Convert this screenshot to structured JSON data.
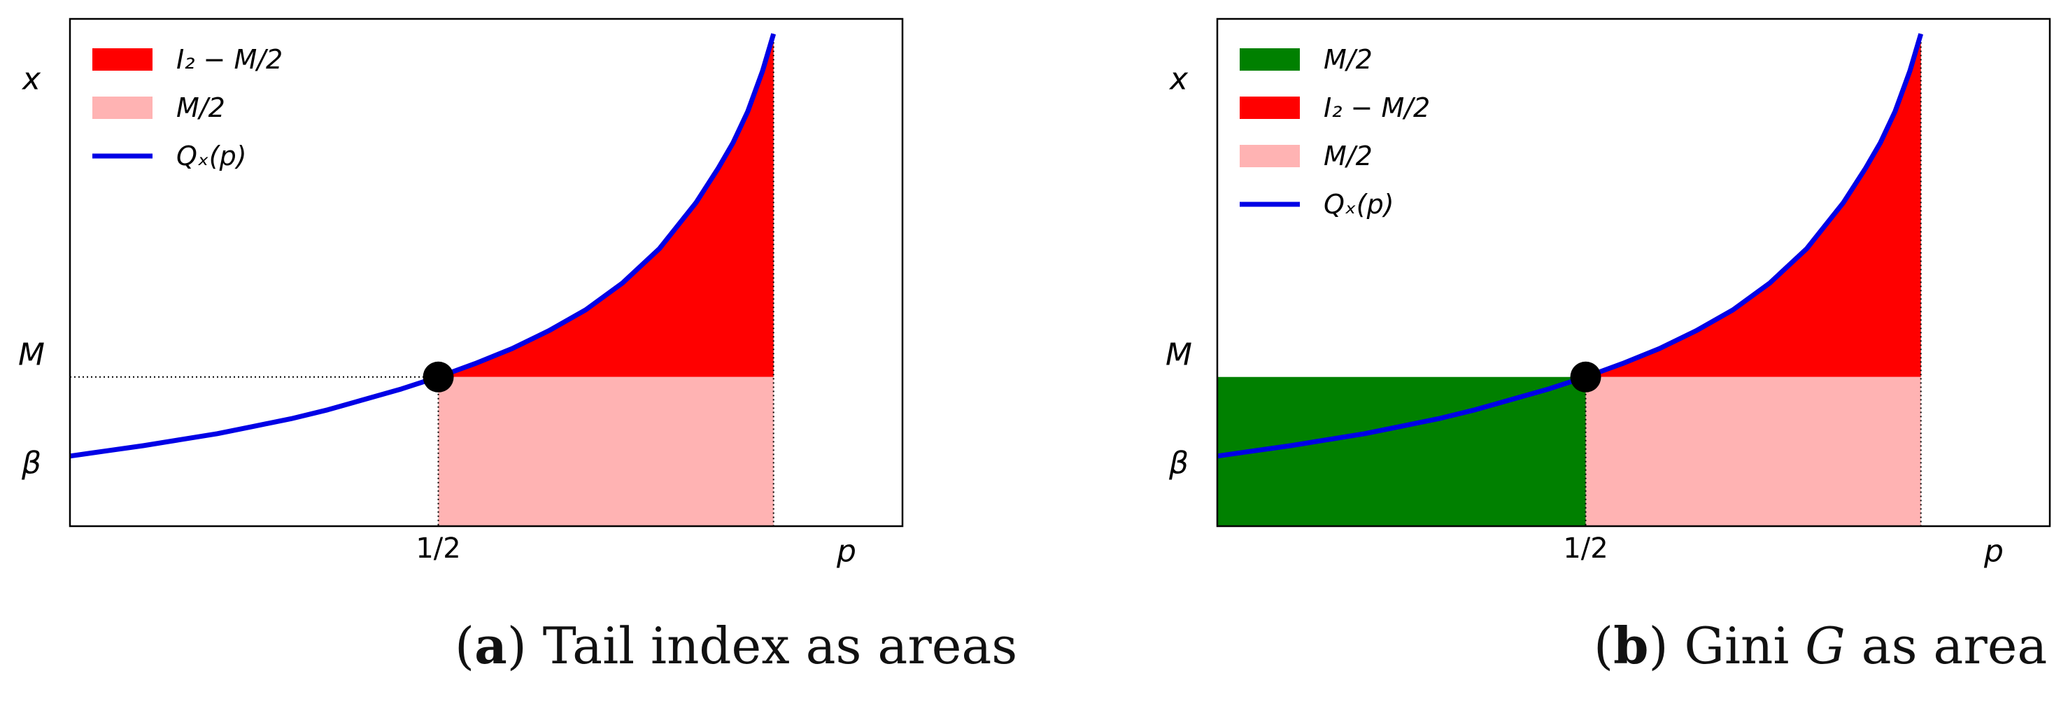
{
  "chart_data": [
    {
      "id": "a",
      "type": "area",
      "xlim": [
        0,
        1.13
      ],
      "ylim": [
        0,
        3.4
      ],
      "axis_labels": {
        "x": "p",
        "y": "x"
      },
      "y_marks": [
        {
          "label": "M",
          "value": 1.0
        },
        {
          "label": "β",
          "value": 0.47
        }
      ],
      "x_marks": [
        {
          "label": "1/2",
          "value": 0.5
        }
      ],
      "curve": {
        "name": "Q_x(p)",
        "color": "#0000e6",
        "p": [
          0.0,
          0.05,
          0.1,
          0.15,
          0.2,
          0.25,
          0.3,
          0.35,
          0.4,
          0.45,
          0.5,
          0.55,
          0.6,
          0.65,
          0.7,
          0.75,
          0.8,
          0.85,
          0.88,
          0.9,
          0.92,
          0.94,
          0.955
        ],
        "x": [
          0.47,
          0.505,
          0.54,
          0.58,
          0.62,
          0.67,
          0.72,
          0.78,
          0.85,
          0.92,
          1.0,
          1.09,
          1.19,
          1.31,
          1.45,
          1.63,
          1.86,
          2.17,
          2.4,
          2.57,
          2.78,
          3.05,
          3.3
        ]
      },
      "areas": [
        {
          "name": "I_2 − M/2",
          "color": "#ff0000",
          "from_p": 0.5,
          "to_p": 0.955,
          "lower": "M",
          "upper": "curve"
        },
        {
          "name": "M/2",
          "color": "#ffb3b3",
          "from_p": 0.5,
          "to_p": 0.955,
          "lower": 0,
          "upper": "M"
        }
      ],
      "median_point": {
        "p": 0.5,
        "x": 1.0,
        "color": "#000000"
      },
      "guides": [
        "horizontal dotted line at M from p = 0 to 1/2",
        "vertical dotted lines at p = 1/2 and p = 0.955"
      ],
      "legend": {
        "placement": "top-left",
        "entries": [
          {
            "label": "I₂ − M/2",
            "kind": "patch",
            "color": "#ff0000"
          },
          {
            "label": "M/2",
            "kind": "patch",
            "color": "#ffb3b3"
          },
          {
            "label": "Qₓ(p)",
            "kind": "line",
            "color": "#0000e6"
          }
        ]
      }
    },
    {
      "id": "b",
      "type": "area",
      "xlim": [
        0,
        1.13
      ],
      "ylim": [
        0,
        3.4
      ],
      "axis_labels": {
        "x": "p",
        "y": "x"
      },
      "y_marks": [
        {
          "label": "M",
          "value": 1.0
        },
        {
          "label": "β",
          "value": 0.47
        }
      ],
      "x_marks": [
        {
          "label": "1/2",
          "value": 0.5
        }
      ],
      "curve": {
        "name": "Q_x(p)",
        "color": "#0000e6",
        "p": [
          0.0,
          0.05,
          0.1,
          0.15,
          0.2,
          0.25,
          0.3,
          0.35,
          0.4,
          0.45,
          0.5,
          0.55,
          0.6,
          0.65,
          0.7,
          0.75,
          0.8,
          0.85,
          0.88,
          0.9,
          0.92,
          0.94,
          0.955
        ],
        "x": [
          0.47,
          0.505,
          0.54,
          0.58,
          0.62,
          0.67,
          0.72,
          0.78,
          0.85,
          0.92,
          1.0,
          1.09,
          1.19,
          1.31,
          1.45,
          1.63,
          1.86,
          2.17,
          2.4,
          2.57,
          2.78,
          3.05,
          3.3
        ]
      },
      "areas": [
        {
          "name": "M/2",
          "color": "#008000",
          "from_p": 0.0,
          "to_p": 0.5,
          "lower": 0,
          "upper": "M"
        },
        {
          "name": "I_2 − M/2",
          "color": "#ff0000",
          "from_p": 0.5,
          "to_p": 0.955,
          "lower": "M",
          "upper": "curve"
        },
        {
          "name": "M/2",
          "color": "#ffb3b3",
          "from_p": 0.5,
          "to_p": 0.955,
          "lower": 0,
          "upper": "M"
        }
      ],
      "median_point": {
        "p": 0.5,
        "x": 1.0,
        "color": "#000000"
      },
      "guides": [
        "vertical dotted lines at p = 1/2 and p = 0.955"
      ],
      "legend": {
        "placement": "top-left",
        "entries": [
          {
            "label": "M/2",
            "kind": "patch",
            "color": "#008000"
          },
          {
            "label": "I₂ − M/2",
            "kind": "patch",
            "color": "#ff0000"
          },
          {
            "label": "M/2",
            "kind": "patch",
            "color": "#ffb3b3"
          },
          {
            "label": "Qₓ(p)",
            "kind": "line",
            "color": "#0000e6"
          }
        ]
      }
    }
  ],
  "captions": [
    {
      "letter": "a",
      "text": "Tail index as areas"
    },
    {
      "letter": "b",
      "text": "Gini",
      "symbol": "G",
      "suffix": "as area"
    }
  ]
}
